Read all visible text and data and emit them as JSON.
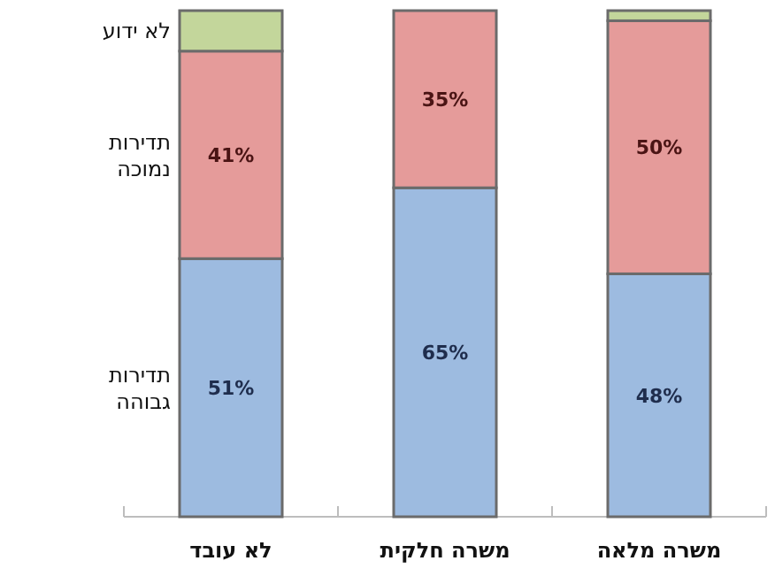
{
  "chart_data": {
    "type": "bar",
    "stacked": true,
    "categories": [
      "לא עובד",
      "משרה חלקית",
      "משרה מלאה"
    ],
    "series": [
      {
        "name": "תדירות גבוהה",
        "color": "#9dbbe0",
        "values": [
          51,
          65,
          48
        ],
        "value_labels": [
          "51%",
          "65%",
          "48%"
        ]
      },
      {
        "name": "תדירות נמוכה",
        "color": "#e59b9a",
        "values": [
          41,
          35,
          50
        ],
        "value_labels": [
          "41%",
          "35%",
          "50%"
        ]
      },
      {
        "name": "לא ידוע",
        "color": "#c3d69b",
        "values": [
          8,
          null,
          2
        ],
        "value_labels": [
          null,
          null,
          null
        ]
      }
    ],
    "tick_labels": "x"
  }
}
